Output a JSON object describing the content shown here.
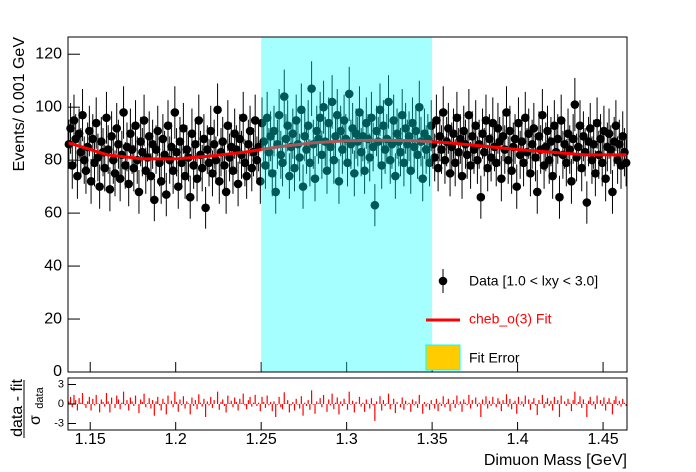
{
  "chart_data": [
    {
      "type": "errorbar",
      "ylabel": "Events/ 0.001 GeV",
      "bin_start": 1.137,
      "bin_width": 0.001,
      "xlim": [
        1.137,
        1.464
      ],
      "ylim": [
        0,
        126.5
      ],
      "xticks": [
        1.15,
        1.2,
        1.25,
        1.3,
        1.35,
        1.4,
        1.45
      ],
      "yticks": [
        0,
        20,
        40,
        60,
        80,
        100,
        120
      ],
      "highlight": [
        1.25,
        1.35
      ],
      "highlight_color": "#00ffff",
      "legend": "lower right",
      "series": [
        {
          "name": "Data [1.0 < lxy < 3.0]",
          "color": "#000000",
          "values": [
            86,
            92,
            78,
            95,
            88,
            74,
            90,
            83,
            97,
            80,
            76,
            85,
            91,
            72,
            88,
            79,
            94,
            81,
            70,
            87,
            83,
            77,
            96,
            84,
            69,
            89,
            80,
            75,
            92,
            86,
            73,
            82,
            98,
            78,
            85,
            71,
            90,
            84,
            77,
            93,
            80,
            68,
            87,
            83,
            95,
            76,
            81,
            89,
            74,
            86,
            65,
            84,
            91,
            79,
            72,
            88,
            82,
            67,
            93,
            80,
            85,
            76,
            98,
            83,
            70,
            87,
            79,
            92,
            74,
            84,
            81,
            66,
            90,
            78,
            86,
            73,
            95,
            82,
            77,
            88,
            62,
            84,
            79,
            91,
            75,
            86,
            80,
            99,
            72,
            83,
            87,
            78,
            68,
            93,
            81,
            85,
            76,
            90,
            84,
            71,
            88,
            82,
            96,
            79,
            74,
            86,
            91,
            77,
            83,
            95,
            80,
            85,
            72,
            94,
            87,
            78,
            96,
            83,
            89,
            75,
            91,
            68,
            86,
            97,
            82,
            79,
            104,
            88,
            93,
            74,
            85,
            90,
            77,
            95,
            86,
            81,
            99,
            70,
            89,
            84,
            93,
            79,
            107,
            86,
            73,
            91,
            88,
            96,
            82,
            100,
            87,
            76,
            94,
            85,
            102,
            80,
            89,
            97,
            72,
            91,
            84,
            95,
            88,
            79,
            105,
            86,
            92,
            75,
            90,
            87,
            98,
            83,
            89,
            76,
            94,
            88,
            81,
            96,
            85,
            63,
            91,
            87,
            99,
            78,
            93,
            84,
            88,
            102,
            80,
            86,
            95,
            74,
            90,
            87,
            83,
            97,
            79,
            92,
            86,
            89,
            76,
            94,
            85,
            91,
            82,
            100,
            87,
            73,
            90,
            84,
            88,
            79,
            93,
            86,
            81,
            95,
            77,
            89,
            84,
            98,
            80,
            87,
            92,
            75,
            85,
            90,
            79,
            96,
            83,
            88,
            74,
            91,
            86,
            82,
            97,
            78,
            89,
            84,
            93,
            80,
            86,
            66,
            90,
            83,
            95,
            77,
            88,
            81,
            94,
            85,
            79,
            92,
            87,
            73,
            89,
            84,
            98,
            80,
            91,
            76,
            85,
            88,
            70,
            94,
            82,
            87,
            79,
            96,
            83,
            90,
            75,
            86,
            92,
            81,
            68,
            89,
            84,
            97,
            78,
            85,
            91,
            80,
            87,
            74,
            93,
            83,
            88,
            66,
            95,
            82,
            86,
            79,
            90,
            84,
            72,
            88,
            101,
            81,
            85,
            93,
            77,
            89,
            83,
            64,
            87,
            92,
            80,
            86,
            75,
            94,
            82,
            88,
            79,
            91,
            73,
            85,
            90,
            84,
            68,
            87,
            93,
            80,
            86,
            78,
            89,
            83,
            79
          ]
        },
        {
          "name": "cheb_o(3) Fit",
          "color": "#ff0000",
          "x": [
            1.137,
            1.14,
            1.16,
            1.18,
            1.2,
            1.22,
            1.24,
            1.26,
            1.28,
            1.3,
            1.32,
            1.34,
            1.36,
            1.38,
            1.4,
            1.42,
            1.44,
            1.464
          ],
          "values": [
            86.5,
            86,
            82,
            80.5,
            80.5,
            81.5,
            83,
            85,
            86.5,
            87.3,
            87.5,
            87.3,
            86.5,
            85.3,
            84,
            83,
            82,
            82
          ]
        }
      ],
      "band_legend": {
        "name": "Fit Error",
        "color": "#ffcc00"
      }
    },
    {
      "type": "bar",
      "ylabel_top": "data - fit",
      "ylabel_symbol": "σ",
      "ylabel_sub": "data",
      "xlabel": "Dimuon Mass [GeV]",
      "bin_start": 1.137,
      "bin_width": 0.001,
      "xlim": [
        1.137,
        1.464
      ],
      "ylim": [
        -4,
        4
      ],
      "xticks": [
        1.15,
        1.2,
        1.25,
        1.3,
        1.35,
        1.4,
        1.45
      ],
      "yticks": [
        -3,
        0,
        3
      ],
      "color": "#ff0000",
      "values": [
        0.4,
        1.1,
        -0.5,
        1.4,
        0.6,
        -1.0,
        0.9,
        0.2,
        1.7,
        -0.1,
        -0.6,
        0.4,
        1.1,
        -1.0,
        0.8,
        -0.2,
        1.4,
        0.1,
        -1.3,
        0.7,
        0.3,
        -0.4,
        1.7,
        0.4,
        -1.3,
        1.0,
        0.0,
        -0.6,
        1.3,
        0.7,
        -0.8,
        0.2,
        1.9,
        -0.2,
        0.6,
        -1.0,
        1.0,
        0.4,
        -0.3,
        1.3,
        0.0,
        -1.4,
        0.7,
        0.3,
        1.6,
        -0.5,
        0.1,
        0.9,
        -0.7,
        0.6,
        -1.8,
        0.4,
        1.1,
        -0.2,
        -1.0,
        0.8,
        0.2,
        -1.6,
        1.3,
        0.0,
        0.5,
        -0.5,
        1.9,
        0.3,
        -1.2,
        0.7,
        -0.2,
        1.2,
        -0.7,
        0.4,
        0.1,
        -1.6,
        1.0,
        -0.3,
        0.6,
        -0.8,
        1.5,
        0.2,
        -0.4,
        0.8,
        -2.0,
        0.4,
        -0.2,
        1.1,
        -0.6,
        0.6,
        0.0,
        1.9,
        -0.9,
        0.3,
        0.7,
        -0.3,
        -1.3,
        1.3,
        0.1,
        0.5,
        -0.5,
        1.0,
        0.3,
        -1.0,
        0.8,
        0.1,
        1.6,
        -0.2,
        -0.8,
        0.6,
        1.1,
        -0.4,
        0.2,
        1.4,
        -0.3,
        0.2,
        -1.1,
        1.1,
        0.3,
        -0.6,
        1.3,
        -0.2,
        0.3,
        -1.1,
        0.4,
        -2.0,
        -0.1,
        1.1,
        -0.5,
        -0.8,
        1.8,
        0.1,
        0.6,
        -1.3,
        -0.2,
        0.3,
        -1.0,
        0.8,
        -0.1,
        -0.7,
        1.2,
        -1.8,
        0.2,
        -0.3,
        0.6,
        -0.9,
        2.1,
        -0.1,
        -1.5,
        0.4,
        0.1,
        0.9,
        -0.5,
        1.4,
        0.0,
        -1.2,
        0.7,
        -0.2,
        1.6,
        -0.8,
        0.2,
        1.0,
        -1.6,
        0.4,
        -0.3,
        0.8,
        0.1,
        -0.9,
        1.9,
        -0.1,
        0.5,
        -1.3,
        0.3,
        0.0,
        1.1,
        -0.4,
        0.2,
        -1.2,
        0.7,
        0.1,
        -0.7,
        0.9,
        -0.2,
        -2.6,
        0.4,
        0.0,
        1.2,
        -1.0,
        0.6,
        -0.3,
        0.1,
        1.6,
        -0.8,
        -0.1,
        0.8,
        -1.4,
        0.3,
        0.0,
        -0.5,
        1.0,
        -0.9,
        0.5,
        -0.1,
        0.2,
        -1.2,
        0.7,
        -0.2,
        0.4,
        -0.6,
        1.4,
        0.0,
        -1.5,
        0.3,
        -0.4,
        0.1,
        -0.9,
        0.6,
        -0.1,
        -0.7,
        0.8,
        -1.1,
        0.2,
        -0.3,
        1.2,
        -0.5,
        0.2,
        0.8,
        -1.1,
        0.1,
        0.6,
        -0.6,
        1.3,
        -0.1,
        0.4,
        -1.2,
        0.7,
        0.2,
        -0.2,
        1.4,
        -0.7,
        0.6,
        0.0,
        1.0,
        -0.4,
        0.2,
        -2.0,
        0.7,
        -0.1,
        1.2,
        -0.7,
        0.5,
        -0.3,
        1.1,
        0.1,
        -0.5,
        0.9,
        0.4,
        -1.1,
        0.6,
        0.1,
        1.5,
        -0.4,
        0.8,
        -0.8,
        0.2,
        0.5,
        -1.5,
        1.1,
        -0.1,
        0.4,
        -0.4,
        1.3,
        0.0,
        0.7,
        -0.9,
        0.3,
        0.9,
        -0.2,
        -1.7,
        0.6,
        0.1,
        1.4,
        -0.6,
        0.3,
        0.9,
        -0.3,
        0.5,
        -1.0,
        1.1,
        0.1,
        0.6,
        -2.0,
        1.3,
        0.0,
        0.4,
        -0.3,
        0.8,
        0.2,
        -1.1,
        0.6,
        1.9,
        -0.1,
        0.3,
        1.2,
        -0.6,
        0.7,
        0.1,
        -2.0,
        0.5,
        1.1,
        -0.2,
        0.4,
        -0.8,
        1.3,
        0.0,
        0.6,
        -0.3,
        1.0,
        -1.0,
        0.3,
        0.9,
        0.2,
        -1.6,
        0.6,
        1.2,
        -0.2,
        0.5,
        -0.4,
        0.8,
        0.2,
        -0.3
      ]
    }
  ]
}
